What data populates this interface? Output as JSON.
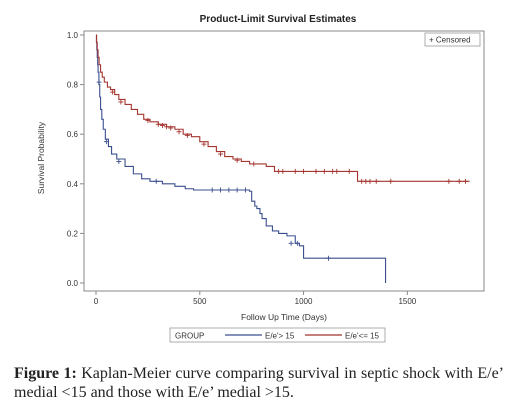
{
  "chart_data": {
    "type": "line",
    "title": "Product-Limit Survival Estimates",
    "xlabel": "Follow Up Time (Days)",
    "ylabel": "Survival Probability",
    "xlim": [
      0,
      1850
    ],
    "ylim": [
      0,
      1.0
    ],
    "x_ticks": [
      0,
      500,
      1000,
      1500
    ],
    "y_ticks": [
      0.0,
      0.2,
      0.4,
      0.6,
      0.8,
      1.0
    ],
    "x_tick_labels": [
      "0",
      "500",
      "1000",
      "1500"
    ],
    "y_tick_labels": [
      "0.0",
      "0.2",
      "0.4",
      "0.6",
      "0.8",
      "1.0"
    ],
    "step": true,
    "legend": {
      "title": "GROUP",
      "placement": "bottom",
      "censored_label": "+ Censored",
      "censored_placement": "top-right"
    },
    "series": [
      {
        "name": "E/e'> 15",
        "color": "#3b4f8f",
        "x": [
          0,
          2,
          4,
          6,
          8,
          10,
          14,
          18,
          22,
          28,
          35,
          45,
          60,
          75,
          100,
          140,
          180,
          220,
          260,
          320,
          380,
          430,
          470,
          520,
          580,
          640,
          700,
          740,
          750,
          765,
          775,
          790,
          800,
          820,
          850,
          880,
          920,
          960,
          980,
          1000,
          1100,
          1200,
          1300,
          1395
        ],
        "y": [
          1.0,
          0.97,
          0.94,
          0.91,
          0.88,
          0.85,
          0.8,
          0.75,
          0.7,
          0.66,
          0.62,
          0.58,
          0.55,
          0.52,
          0.5,
          0.47,
          0.44,
          0.42,
          0.41,
          0.4,
          0.39,
          0.38,
          0.375,
          0.375,
          0.375,
          0.375,
          0.375,
          0.37,
          0.33,
          0.31,
          0.3,
          0.28,
          0.26,
          0.23,
          0.21,
          0.2,
          0.19,
          0.16,
          0.15,
          0.1,
          0.1,
          0.1,
          0.1,
          0.0
        ],
        "censored_x": [
          15,
          50,
          110,
          290,
          560,
          600,
          640,
          680,
          720,
          940,
          970,
          1120
        ],
        "censored_y": [
          0.81,
          0.57,
          0.49,
          0.41,
          0.375,
          0.375,
          0.375,
          0.375,
          0.375,
          0.16,
          0.16,
          0.1
        ]
      },
      {
        "name": "E/e'<= 15",
        "color": "#a5352f",
        "x": [
          0,
          3,
          6,
          10,
          15,
          22,
          30,
          40,
          55,
          70,
          90,
          110,
          140,
          170,
          200,
          230,
          260,
          300,
          340,
          380,
          420,
          460,
          500,
          540,
          580,
          620,
          660,
          700,
          740,
          780,
          820,
          860,
          1000,
          1100,
          1200,
          1250,
          1260,
          1800
        ],
        "y": [
          1.0,
          0.97,
          0.94,
          0.91,
          0.88,
          0.85,
          0.83,
          0.81,
          0.79,
          0.78,
          0.76,
          0.74,
          0.72,
          0.7,
          0.68,
          0.66,
          0.65,
          0.64,
          0.63,
          0.62,
          0.6,
          0.59,
          0.57,
          0.55,
          0.53,
          0.51,
          0.5,
          0.49,
          0.48,
          0.48,
          0.47,
          0.45,
          0.45,
          0.45,
          0.45,
          0.45,
          0.41,
          0.41
        ],
        "censored_x": [
          80,
          120,
          250,
          300,
          320,
          340,
          360,
          400,
          440,
          520,
          600,
          680,
          760,
          880,
          900,
          960,
          1000,
          1060,
          1100,
          1140,
          1160,
          1220,
          1280,
          1300,
          1320,
          1350,
          1420,
          1700,
          1750,
          1780
        ],
        "censored_y": [
          0.77,
          0.73,
          0.655,
          0.64,
          0.635,
          0.63,
          0.625,
          0.61,
          0.595,
          0.56,
          0.52,
          0.495,
          0.48,
          0.45,
          0.45,
          0.45,
          0.45,
          0.45,
          0.45,
          0.45,
          0.45,
          0.45,
          0.41,
          0.41,
          0.41,
          0.41,
          0.41,
          0.41,
          0.41,
          0.41
        ]
      }
    ]
  },
  "caption": {
    "label": "Figure 1:",
    "text": "Kaplan-Meier curve comparing survival in septic shock with E/e’ medial <15 and those with E/e’ medial >15."
  }
}
